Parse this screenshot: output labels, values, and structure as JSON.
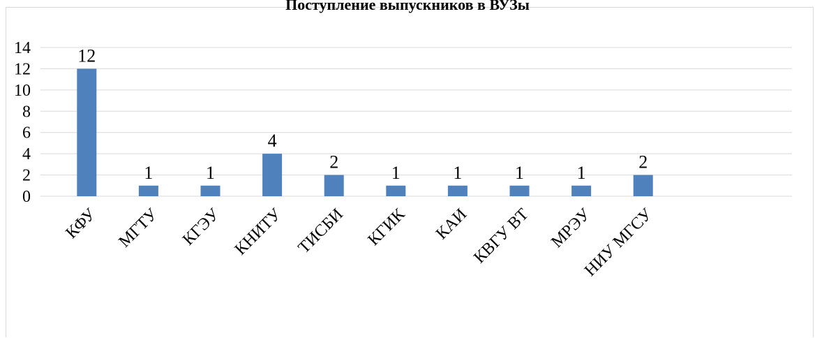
{
  "chart_data": {
    "type": "bar",
    "title": "Поступление выпускников в ВУЗы",
    "categories": [
      "КФУ",
      "МГТУ",
      "КГЭУ",
      "КНИТУ",
      "ТИСБИ",
      "КГИК",
      "КАИ",
      "КВГУ ВТ",
      "МРЭУ",
      "НИУ МГСУ"
    ],
    "values": [
      12,
      1,
      1,
      4,
      2,
      1,
      1,
      1,
      1,
      2
    ],
    "data_labels": [
      "12",
      "1",
      "1",
      "4",
      "2",
      "1",
      "1",
      "1",
      "1",
      "2"
    ],
    "ylim": [
      0,
      14
    ],
    "yticks": [
      0,
      2,
      4,
      6,
      8,
      10,
      12,
      14
    ],
    "ytick_labels": [
      "0",
      "2",
      "4",
      "6",
      "8",
      "10",
      "12",
      "14"
    ],
    "xlabel": "",
    "ylabel": "",
    "grid": true,
    "legend": "none",
    "bar_color": "#4f81bd",
    "grid_color": "#d9d9d9"
  }
}
